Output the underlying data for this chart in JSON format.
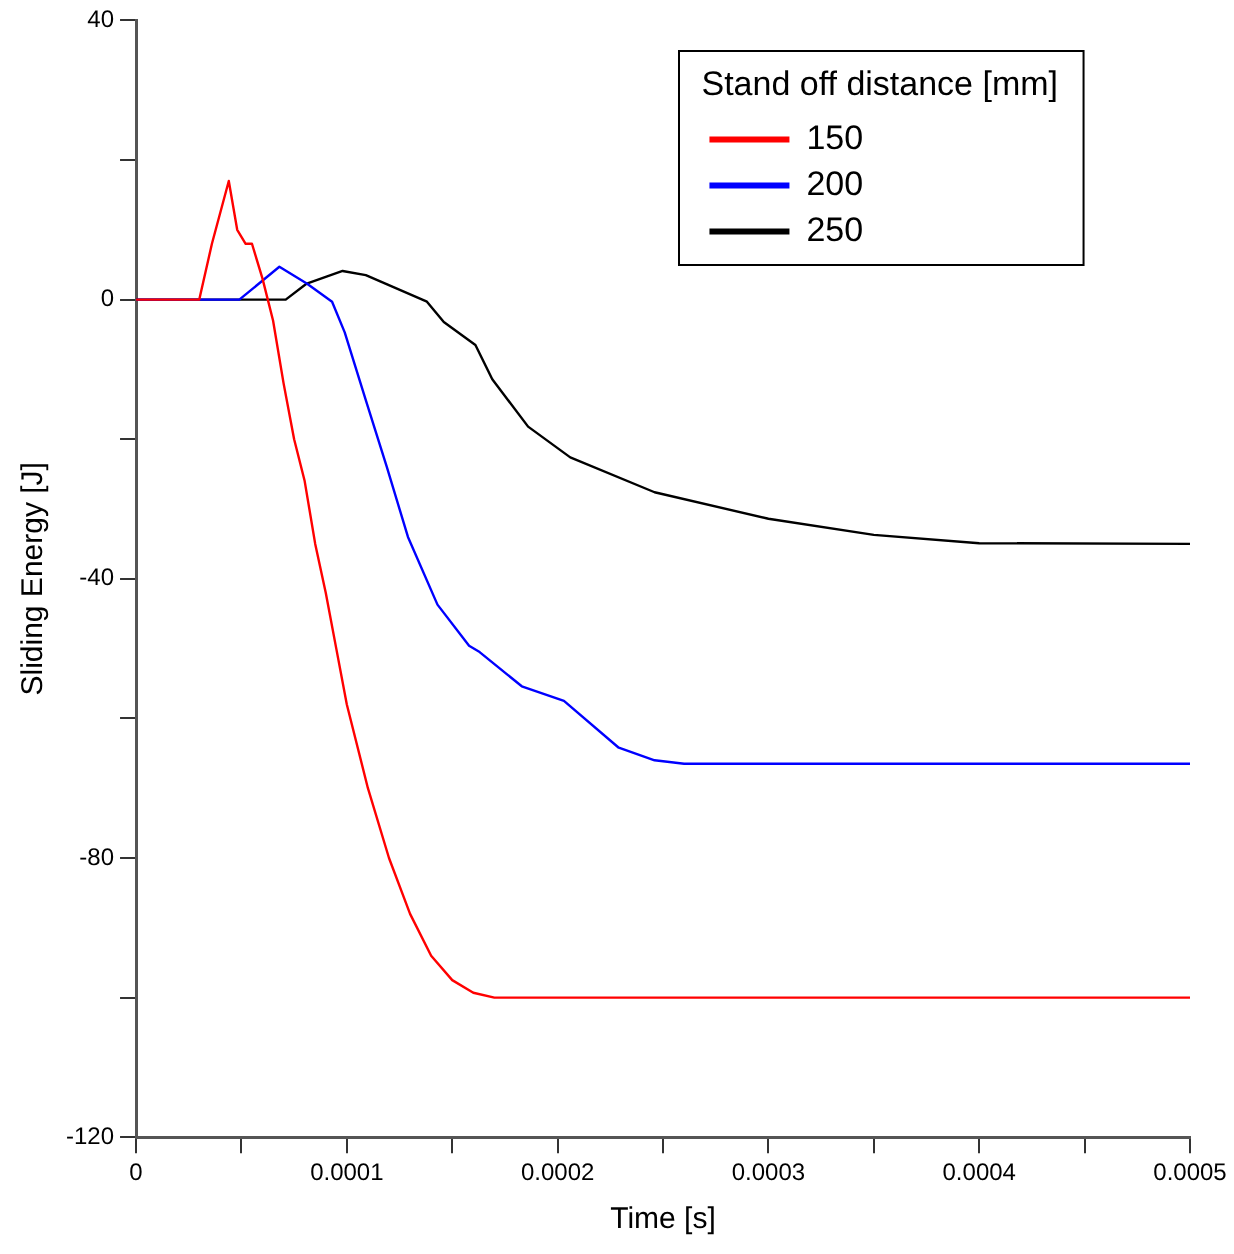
{
  "chart_data": {
    "type": "line",
    "xlabel": "Time [s]",
    "ylabel": "Sliding Energy [J]",
    "legend_title": "Stand off distance [mm]",
    "legend": "top right",
    "grid": false,
    "marker": "none",
    "line_style": "solid",
    "xlim": [
      0,
      0.0005
    ],
    "xticks": [
      0,
      {
        "value": 5e-05,
        "label": null
      },
      0.0001,
      {
        "value": 0.00015,
        "label": null
      },
      0.0002,
      {
        "value": 0.00025,
        "label": null
      },
      0.0003,
      {
        "value": 0.00035,
        "label": null
      },
      0.0004,
      {
        "value": 0.00045,
        "label": null
      },
      0.0005
    ],
    "ylim": [
      -120,
      40
    ],
    "yticks": [
      -120,
      {
        "value": -100,
        "label": null
      },
      -80,
      {
        "value": -60,
        "label": null
      },
      -40,
      {
        "value": -20,
        "label": null
      },
      0,
      {
        "value": 20,
        "label": null
      },
      40
    ],
    "series": [
      {
        "name": "150",
        "color": "#ff0000",
        "x": [
          0,
          3e-05,
          3.6e-05,
          4.4e-05,
          4.8e-05,
          5.2e-05,
          5.5e-05,
          6e-05,
          6.5e-05,
          7e-05,
          7.5e-05,
          8e-05,
          8.5e-05,
          9e-05,
          9.5e-05,
          0.0001,
          0.00011,
          0.00012,
          0.00013,
          0.00014,
          0.00015,
          0.00016,
          0.00017,
          0.0005
        ],
        "values": [
          0,
          0,
          8,
          17,
          10,
          8,
          8,
          3,
          -3,
          -12,
          -20,
          -26,
          -35,
          -42,
          -50,
          -58,
          -70,
          -80,
          -88,
          -94,
          -97.5,
          -99.3,
          -100,
          -100
        ]
      },
      {
        "name": "200",
        "color": "#0000ff",
        "x": [
          0,
          4.9e-05,
          6.8e-05,
          8.1e-05,
          9.3e-05,
          9.9e-05,
          0.000109,
          0.000119,
          0.000129,
          0.000143,
          0.000158,
          0.000163,
          0.000183,
          0.000203,
          0.000229,
          0.000246,
          0.00026,
          0.0005
        ],
        "values": [
          0,
          0,
          4.7,
          2.3,
          -0.3,
          -4.7,
          -14.4,
          -24,
          -34,
          -43.7,
          -49.6,
          -50.5,
          -55.4,
          -57.5,
          -64.2,
          -66,
          -66.5,
          -66.5
        ]
      },
      {
        "name": "250",
        "color": "#000000",
        "x": [
          0,
          7.1e-05,
          8.1e-05,
          9.8e-05,
          0.000109,
          0.000138,
          0.000146,
          0.000161,
          0.000169,
          0.000186,
          0.000206,
          0.000246,
          0.0003,
          0.00035,
          0.0004,
          0.0005
        ],
        "values": [
          0,
          0,
          2.3,
          4.1,
          3.5,
          -0.3,
          -3.2,
          -6.5,
          -11.4,
          -18.2,
          -22.6,
          -27.6,
          -31.4,
          -33.7,
          -34.9,
          -35
        ]
      }
    ]
  }
}
